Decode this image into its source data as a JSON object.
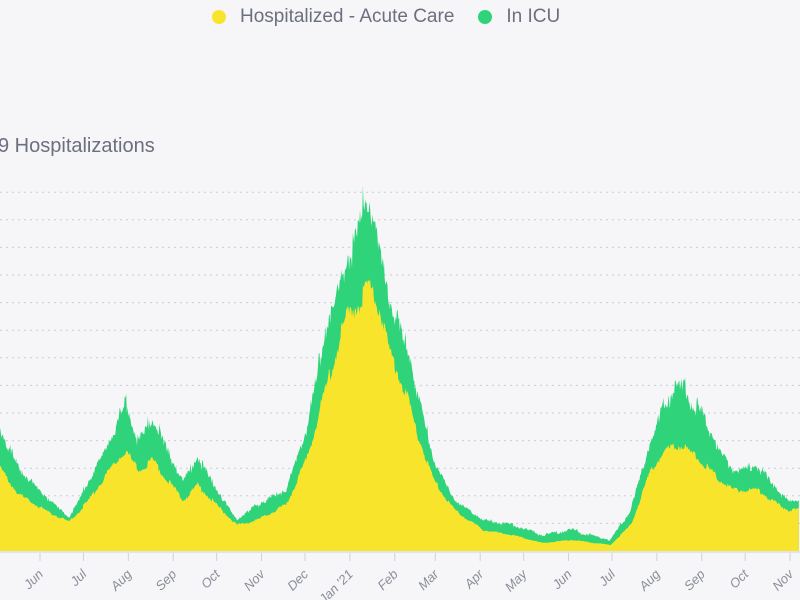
{
  "chart_data": {
    "type": "area",
    "title": "9 Hospitalizations",
    "xlabel": "",
    "ylabel": "",
    "x_unit": "days since Jun 1 2020",
    "xlim": [
      -28,
      524
    ],
    "ylim": [
      0,
      13
    ],
    "grid": true,
    "legend_position": "top",
    "x_ticks": [
      {
        "day": 0,
        "label": "Jun"
      },
      {
        "day": 30,
        "label": "Jul"
      },
      {
        "day": 61,
        "label": "Aug"
      },
      {
        "day": 92,
        "label": "Sep"
      },
      {
        "day": 122,
        "label": "Oct"
      },
      {
        "day": 153,
        "label": "Nov"
      },
      {
        "day": 183,
        "label": "Dec"
      },
      {
        "day": 214,
        "label": "Jan '21"
      },
      {
        "day": 245,
        "label": "Feb"
      },
      {
        "day": 273,
        "label": "Mar"
      },
      {
        "day": 304,
        "label": "Apr"
      },
      {
        "day": 334,
        "label": "May"
      },
      {
        "day": 365,
        "label": "Jun"
      },
      {
        "day": 395,
        "label": "Jul"
      },
      {
        "day": 426,
        "label": "Aug"
      },
      {
        "day": 457,
        "label": "Sep"
      },
      {
        "day": 487,
        "label": "Oct"
      },
      {
        "day": 518,
        "label": "Nov"
      }
    ],
    "x": [
      -27,
      -14,
      3,
      20,
      34,
      48,
      59,
      68,
      78,
      88,
      99,
      109,
      122,
      136,
      150,
      170,
      184,
      197,
      211,
      221,
      226,
      235,
      241,
      252,
      262,
      272,
      286,
      306,
      326,
      347,
      367,
      394,
      408,
      422,
      432,
      442,
      456,
      469,
      479,
      496,
      510,
      517
    ],
    "series": [
      {
        "name": "Hospitalized - Acute Care",
        "color": "#f9e42c",
        "values": [
          2.93,
          2.03,
          1.49,
          1.05,
          1.85,
          2.93,
          3.66,
          2.93,
          3.3,
          2.57,
          1.85,
          2.39,
          1.67,
          0.94,
          1.12,
          1.67,
          3.3,
          5.83,
          8.37,
          9.09,
          9.64,
          8.73,
          7.28,
          5.83,
          4.02,
          2.57,
          1.49,
          0.76,
          0.58,
          0.29,
          0.4,
          0.22,
          0.94,
          2.93,
          3.66,
          3.84,
          3.3,
          2.57,
          2.21,
          2.21,
          1.67,
          1.49
        ]
      },
      {
        "name": "In ICU",
        "color": "#2fd37a",
        "values": [
          1.45,
          0.9,
          0.54,
          0.15,
          0.69,
          1.06,
          1.77,
          1.06,
          1.59,
          1.05,
          0.69,
          1.05,
          0.54,
          0.18,
          0.55,
          0.54,
          1.08,
          2.17,
          1.81,
          2.9,
          3.08,
          2.17,
          1.81,
          1.81,
          1.45,
          0.72,
          0.36,
          0.36,
          0.36,
          0.29,
          0.36,
          0.18,
          0.55,
          1.06,
          1.77,
          2.14,
          1.77,
          1.05,
          0.69,
          0.87,
          0.5,
          0.32
        ]
      }
    ]
  }
}
